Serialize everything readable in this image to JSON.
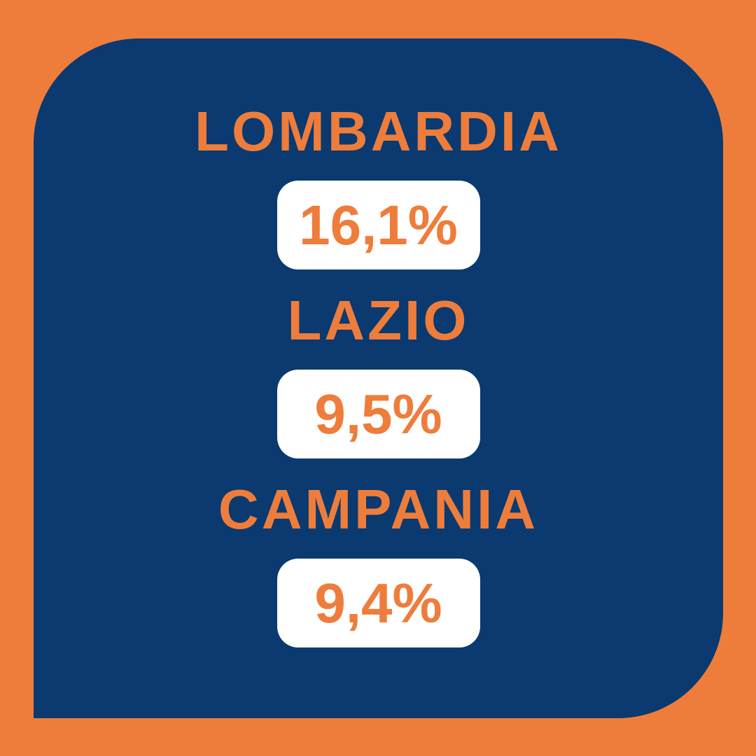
{
  "colors": {
    "background_orange": "#EE7D3B",
    "panel_blue": "#0A3A70",
    "pill_white": "#FFFFFF",
    "text_orange": "#EE7D3B"
  },
  "regions": [
    {
      "name": "LOMBARDIA",
      "value": "16,1%"
    },
    {
      "name": "LAZIO",
      "value": "9,5%"
    },
    {
      "name": "CAMPANIA",
      "value": "9,4%"
    }
  ],
  "chart_data": {
    "type": "table",
    "categories": [
      "LOMBARDIA",
      "LAZIO",
      "CAMPANIA"
    ],
    "values": [
      16.1,
      9.5,
      9.4
    ],
    "value_labels": [
      "16,1%",
      "9,5%",
      "9,4%"
    ],
    "unit": "%",
    "legend_position": "none",
    "notes": "Infographic card: three Italian regions with percentage values in white pills on a navy rounded panel over an orange background"
  }
}
